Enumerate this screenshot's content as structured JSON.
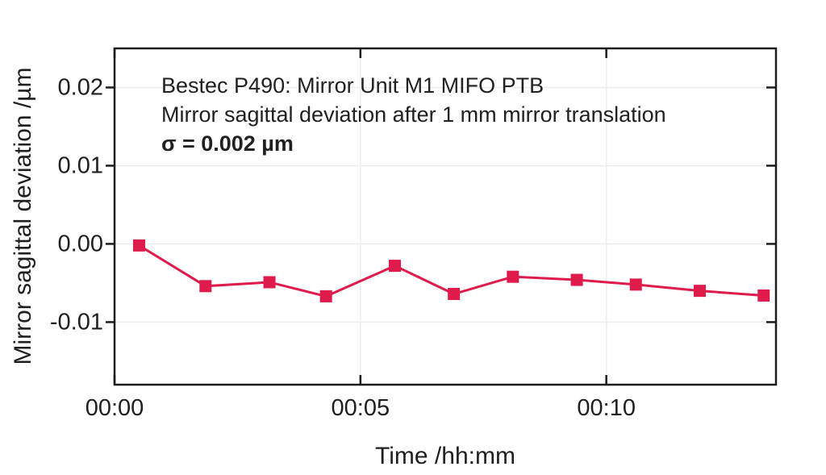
{
  "style": {
    "background": "#ffffff",
    "accent": "#df1b4b",
    "axis_color": "#1c1c1c",
    "grid_color": "#ececec",
    "text_color": "#1f1f1f"
  },
  "chart_data": {
    "type": "line",
    "title": "Bestec P490: Mirror Unit M1 MIFO PTB",
    "subtitle": "Mirror sagittal deviation after 1 mm mirror translation",
    "annotation": "σ = 0.002 µm",
    "xlabel": "Time /hh:mm",
    "ylabel": "Mirror sagittal deviation /µm",
    "x_unit": "minutes",
    "xlim": [
      0,
      13.45
    ],
    "ylim": [
      -0.018,
      0.025
    ],
    "grid": true,
    "legend": false,
    "x_ticks": [
      {
        "value": 0,
        "label": "00:00"
      },
      {
        "value": 5,
        "label": "00:05"
      },
      {
        "value": 10,
        "label": "00:10"
      }
    ],
    "y_ticks": [
      {
        "value": 0.02,
        "label": "0.02"
      },
      {
        "value": 0.01,
        "label": "0.01"
      },
      {
        "value": 0.0,
        "label": "0.00"
      },
      {
        "value": -0.01,
        "label": "-0.01"
      }
    ],
    "x": [
      0.5,
      1.85,
      3.15,
      4.3,
      5.7,
      6.9,
      8.1,
      9.4,
      10.6,
      11.9,
      13.2
    ],
    "series": [
      {
        "name": "Mirror sagittal deviation",
        "color": "#df1b4b",
        "marker": "square",
        "values": [
          -0.0002,
          -0.0054,
          -0.0049,
          -0.0067,
          -0.0028,
          -0.0064,
          -0.0042,
          -0.0046,
          -0.0052,
          -0.006,
          -0.0066
        ]
      }
    ]
  }
}
